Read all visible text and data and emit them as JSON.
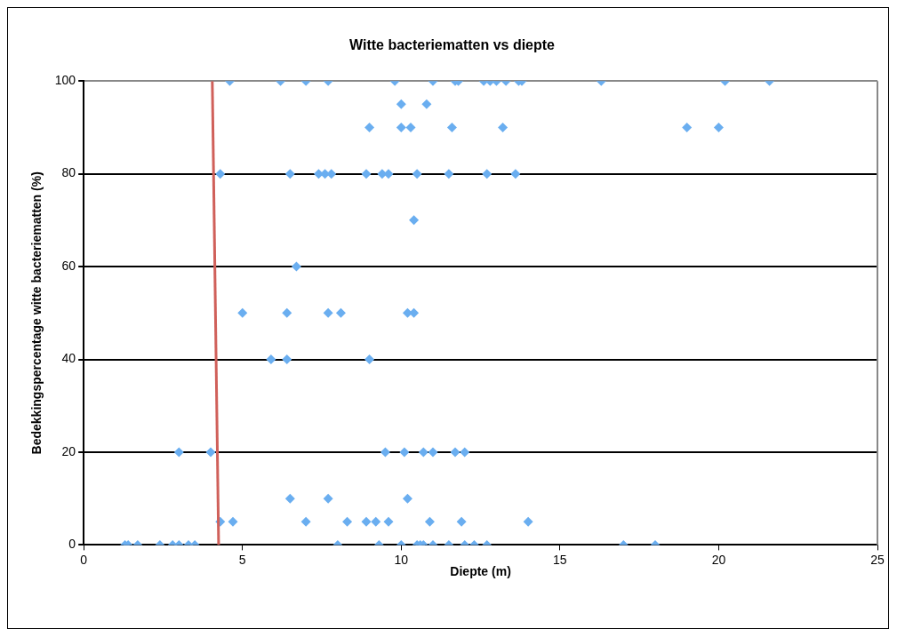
{
  "chart_data": {
    "type": "scatter",
    "title": "Witte bacteriematten vs diepte",
    "xlabel": "Diepte (m)",
    "ylabel": "Bedekkingspercentage witte bacteriematten (%)",
    "xlim": [
      0,
      25
    ],
    "xticks": [
      0,
      5,
      10,
      15,
      20,
      25
    ],
    "ylim": [
      0,
      100
    ],
    "yticks": [
      0,
      20,
      40,
      60,
      80,
      100
    ],
    "grid": "y",
    "legend": false,
    "marker": "diamond",
    "series": [
      {
        "type": "scatter",
        "color": "#6aaef0",
        "x": [
          4.6,
          6.2,
          7.0,
          7.7,
          9.8,
          11.0,
          11.7,
          11.8,
          12.6,
          12.8,
          13.0,
          13.3,
          13.7,
          13.8,
          16.3,
          20.2,
          21.6,
          10.0,
          10.8,
          9.0,
          10.0,
          10.3,
          11.6,
          13.2,
          19.0,
          20.0,
          4.3,
          6.5,
          7.4,
          7.6,
          7.8,
          8.9,
          9.4,
          9.6,
          10.5,
          11.5,
          12.7,
          13.6,
          10.4,
          6.7,
          5.0,
          6.4,
          7.7,
          8.1,
          10.2,
          10.4,
          5.9,
          6.4,
          9.0,
          3.0,
          4.0,
          9.5,
          10.1,
          10.7,
          11.0,
          11.7,
          12.0,
          6.5,
          7.7,
          10.2,
          4.3,
          4.7,
          7.0,
          8.3,
          8.9,
          9.2,
          9.6,
          10.9,
          11.9,
          14.0,
          1.3,
          1.4,
          1.7,
          2.4,
          2.8,
          3.0,
          3.3,
          3.5,
          8.0,
          9.3,
          10.0,
          10.5,
          10.6,
          10.7,
          11.0,
          11.5,
          12.0,
          12.3,
          12.7,
          17.0,
          18.0
        ],
        "values": [
          100,
          100,
          100,
          100,
          100,
          100,
          100,
          100,
          100,
          100,
          100,
          100,
          100,
          100,
          100,
          100,
          100,
          95,
          95,
          90,
          90,
          90,
          90,
          90,
          90,
          90,
          80,
          80,
          80,
          80,
          80,
          80,
          80,
          80,
          80,
          80,
          80,
          80,
          70,
          60,
          50,
          50,
          50,
          50,
          50,
          50,
          40,
          40,
          40,
          20,
          20,
          20,
          20,
          20,
          20,
          20,
          20,
          10,
          10,
          10,
          5,
          5,
          5,
          5,
          5,
          5,
          5,
          5,
          5,
          5,
          0,
          0,
          0,
          0,
          0,
          0,
          0,
          0,
          0,
          0,
          0,
          0,
          0,
          0,
          0,
          0,
          0,
          0,
          0,
          0,
          0
        ]
      },
      {
        "type": "line",
        "color": "#d0605a",
        "marker": "none",
        "line_style": "solid",
        "x": [
          4.05,
          4.25
        ],
        "values": [
          100,
          0
        ]
      }
    ]
  }
}
